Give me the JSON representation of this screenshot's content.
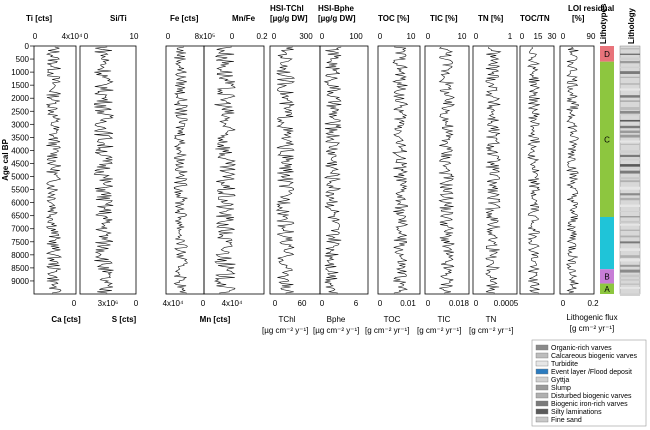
{
  "chart_data": {
    "type": "line",
    "y_axis": {
      "label": "Age cal BP",
      "ticks": [
        0,
        500,
        1000,
        1500,
        2000,
        2500,
        3000,
        3500,
        4000,
        4500,
        5000,
        5500,
        6000,
        6500,
        7000,
        7500,
        8000,
        8500,
        9000
      ],
      "ylim": [
        0,
        9500
      ],
      "inverted": true
    },
    "panels": [
      {
        "id": "ti",
        "top_label": "Ti [cts]",
        "top_ticks": [
          "0",
          "4x10⁴"
        ],
        "bottom_label": "Ca [cts]",
        "bottom_ticks": [
          "0"
        ]
      },
      {
        "id": "siti",
        "top_label": "Si/Ti",
        "top_ticks": [
          "0",
          "10"
        ],
        "bottom_label": "",
        "bottom_ticks": [
          "3x10⁶"
        ]
      },
      {
        "id": "fe",
        "top_label": "Fe [cts]",
        "top_ticks": [
          "0",
          "8x10⁵"
        ],
        "bottom_label": "S [cts]",
        "bottom_ticks": [
          "0",
          "4x10⁴"
        ]
      },
      {
        "id": "mnfe",
        "top_label": "Mn/Fe",
        "top_ticks": [
          "0",
          "0.2"
        ],
        "bottom_label": "Mn [cts]",
        "bottom_ticks": [
          "0",
          "4x10⁴"
        ]
      },
      {
        "id": "tchl",
        "top_label": "HSI-TChl",
        "top_label2": "[µg/g DW]",
        "top_ticks": [
          "0",
          "300"
        ],
        "bottom_label": "TChl",
        "bottom_ticks": [
          "0",
          "60"
        ]
      },
      {
        "id": "bphe",
        "top_label": "HSI-Bphe",
        "top_label2": "[µg/g DW]",
        "top_ticks": [
          "0",
          "100"
        ],
        "bottom_label": "Bphe",
        "bottom_ticks": [
          "0",
          "6"
        ]
      },
      {
        "id": "toc",
        "top_label": "TOC [%]",
        "top_ticks": [
          "0",
          "10"
        ],
        "bottom_label": "TOC",
        "bottom_ticks": [
          "0",
          "0.01"
        ]
      },
      {
        "id": "tic",
        "top_label": "TIC [%]",
        "top_ticks": [
          "0",
          "10"
        ],
        "bottom_label": "TIC",
        "bottom_ticks": [
          "0",
          "0.018"
        ]
      },
      {
        "id": "tn",
        "top_label": "TN [%]",
        "top_ticks": [
          "0",
          "1"
        ],
        "bottom_label": "TN",
        "bottom_ticks": [
          "0",
          "0.0005"
        ]
      },
      {
        "id": "toctn",
        "top_label": "TOC/TN",
        "top_ticks": [
          "0",
          "15",
          "30"
        ],
        "bottom_label": "",
        "bottom_ticks": []
      },
      {
        "id": "loi",
        "top_label": "LOI residual",
        "top_label2": "[%]",
        "top_ticks": [
          "0",
          "90"
        ],
        "bottom_label": "Lithogenic flux",
        "bottom_label2": "[g cm⁻² yr⁻¹]",
        "bottom_ticks": [
          "0",
          "0.2"
        ]
      }
    ],
    "flux_units": [
      "[µg cm⁻² y⁻¹]",
      "[µg cm⁻² y⁻¹]",
      "[g cm⁻² yr⁻¹]",
      "[g cm⁻² yr⁻¹]",
      "[g cm⁻² yr⁻¹]"
    ],
    "lithotypes": {
      "label": "Lithotypes",
      "zones": [
        {
          "name": "D",
          "from": 0,
          "to": 600,
          "color": "#e8737a"
        },
        {
          "name": "C",
          "from": 600,
          "to": 6550,
          "color": "#8dc63f"
        },
        {
          "name": "",
          "from": 6550,
          "to": 8550,
          "color": "#1fc4d8"
        },
        {
          "name": "B",
          "from": 8550,
          "to": 9100,
          "color": "#c77dd6"
        },
        {
          "name": "A",
          "from": 9100,
          "to": 9500,
          "color": "#8dc63f"
        }
      ]
    },
    "lithology_label": "Lithology",
    "legend": [
      {
        "label": "Organic-rich varves",
        "color": "#8a8a8a"
      },
      {
        "label": "Calcareous biogenic varves",
        "color": "#bdbdbd"
      },
      {
        "label": "Turbidite",
        "color": "#e6e6e6"
      },
      {
        "label": "Event layer /Flood deposit",
        "color": "#2b7bbf"
      },
      {
        "label": "Gyttja",
        "color": "#d0d0d0"
      },
      {
        "label": "Slump",
        "color": "#9a9a9a"
      },
      {
        "label": "Disturbed biogenic varves",
        "color": "#b0b0b0"
      },
      {
        "label": "Biogenic iron-rich varves",
        "color": "#7a7a7a"
      },
      {
        "label": "Silty laminations",
        "color": "#5a5a5a"
      },
      {
        "label": "Fine sand",
        "color": "#c8c8c8"
      }
    ]
  }
}
